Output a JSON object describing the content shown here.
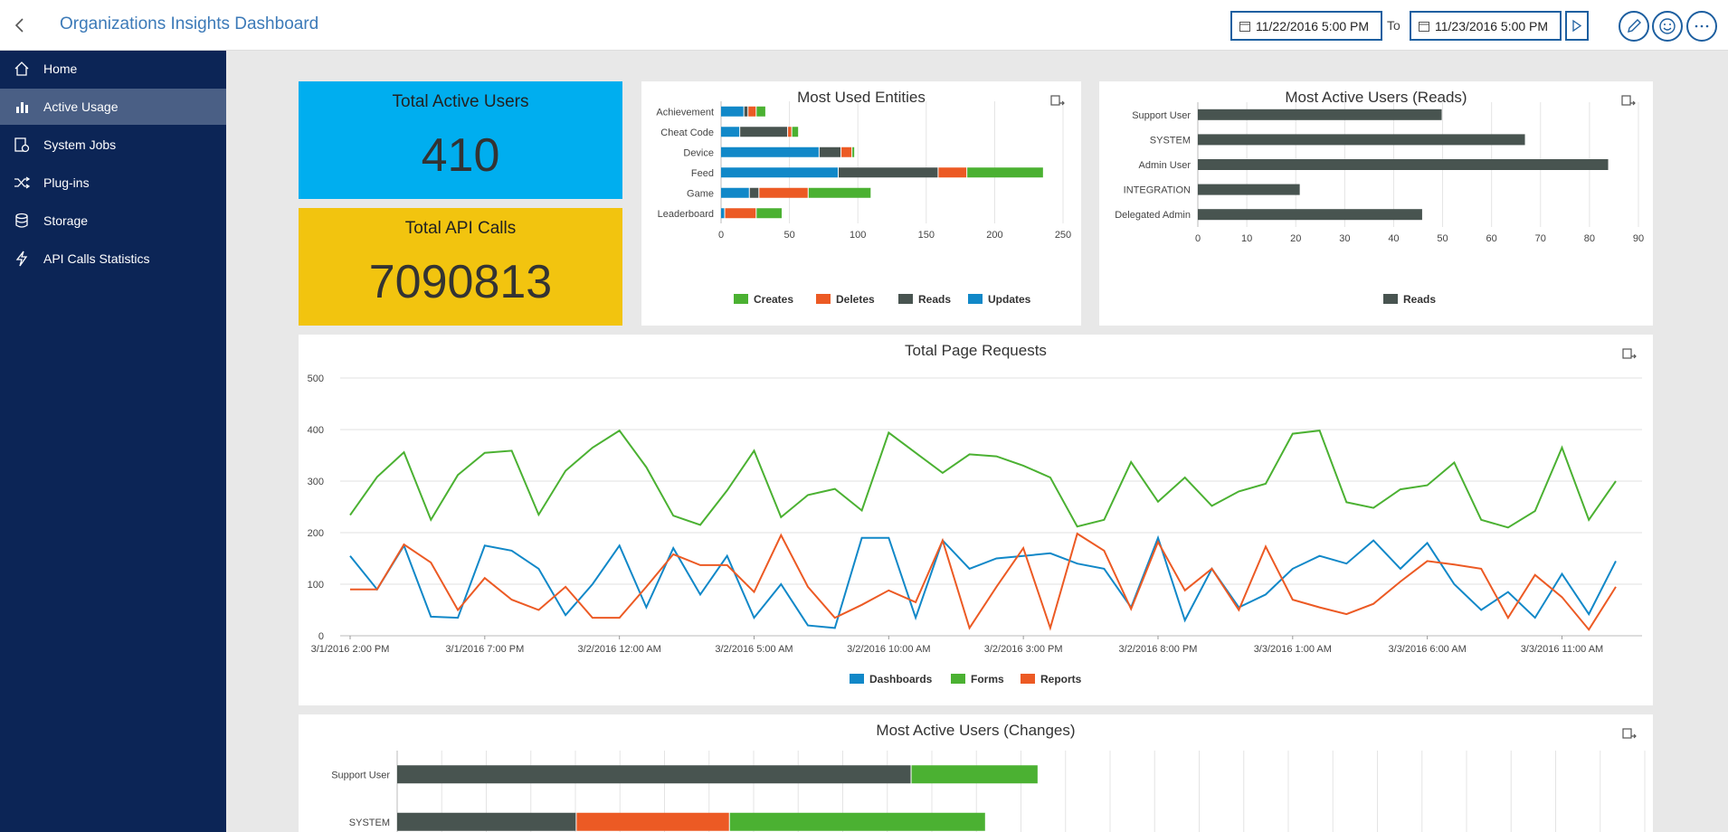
{
  "header": {
    "title": "Organizations Insights Dashboard",
    "date_from": "11/22/2016 5:00 PM",
    "to_label": "To",
    "date_to": "11/23/2016 5:00 PM"
  },
  "sidebar": {
    "items": [
      {
        "label": "Home",
        "icon": "home-icon"
      },
      {
        "label": "Active Usage",
        "icon": "bar-chart-icon"
      },
      {
        "label": "System Jobs",
        "icon": "jobs-icon"
      },
      {
        "label": "Plug-ins",
        "icon": "shuffle-icon"
      },
      {
        "label": "Storage",
        "icon": "database-icon"
      },
      {
        "label": "API Calls Statistics",
        "icon": "lightning-icon"
      }
    ],
    "active_index": 1
  },
  "tiles": {
    "active_users": {
      "title": "Total Active Users",
      "value": "410",
      "color": "#00aeef"
    },
    "api_calls": {
      "title": "Total API Calls",
      "value": "7090813",
      "color": "#f2c40f"
    }
  },
  "colors": {
    "creates": "#4bb132",
    "deletes": "#ec5a24",
    "reads": "#485450",
    "updates": "#1188c8",
    "dashboards": "#1188c8",
    "forms": "#4bb132",
    "reports": "#ec5a24"
  },
  "chart_data": [
    {
      "id": "entities",
      "type": "bar",
      "orientation": "horizontal",
      "stacked": true,
      "title": "Most Used Entities",
      "categories": [
        "Achievement",
        "Cheat Code",
        "Device",
        "Feed",
        "Game",
        "Leaderboard"
      ],
      "series": [
        {
          "name": "Updates",
          "values": [
            17,
            14,
            72,
            86,
            21,
            3
          ]
        },
        {
          "name": "Reads",
          "values": [
            3,
            35,
            16,
            73,
            7,
            0
          ]
        },
        {
          "name": "Deletes",
          "values": [
            6,
            3,
            8,
            21,
            36,
            23
          ]
        },
        {
          "name": "Creates",
          "values": [
            7,
            5,
            2,
            56,
            46,
            19
          ]
        }
      ],
      "legend": [
        "Creates",
        "Deletes",
        "Reads",
        "Updates"
      ],
      "xlim": [
        0,
        250
      ],
      "xticks": [
        0,
        50,
        100,
        150,
        200,
        250
      ]
    },
    {
      "id": "reads",
      "type": "bar",
      "orientation": "horizontal",
      "title": "Most Active Users (Reads)",
      "categories": [
        "Support User",
        "SYSTEM",
        "Admin User",
        "INTEGRATION",
        "Delegated Admin"
      ],
      "series": [
        {
          "name": "Reads",
          "values": [
            50,
            67,
            84,
            21,
            46
          ]
        }
      ],
      "legend": [
        "Reads"
      ],
      "xlim": [
        0,
        90
      ],
      "xticks": [
        0,
        10,
        20,
        30,
        40,
        50,
        60,
        70,
        80,
        90
      ]
    },
    {
      "id": "pages",
      "type": "line",
      "title": "Total Page Requests",
      "ylim": [
        0,
        500
      ],
      "yticks": [
        0,
        100,
        200,
        300,
        400,
        500
      ],
      "xtick_labels": [
        "3/1/2016 2:00 PM",
        "3/1/2016 7:00 PM",
        "3/2/2016 12:00 AM",
        "3/2/2016 5:00 AM",
        "3/2/2016 10:00 AM",
        "3/2/2016 3:00 PM",
        "3/2/2016 8:00 PM",
        "3/3/2016 1:00 AM",
        "3/3/2016 6:00 AM",
        "3/3/2016 11:00 AM"
      ],
      "series": [
        {
          "name": "Dashboards",
          "values": [
            155,
            90,
            175,
            37,
            35,
            175,
            165,
            130,
            40,
            100,
            175,
            55,
            170,
            80,
            155,
            35,
            100,
            20,
            15,
            190,
            190,
            35,
            185,
            130,
            150,
            155,
            160,
            140,
            130,
            55,
            190,
            30,
            130,
            55,
            80,
            130,
            155,
            140,
            185,
            130,
            180,
            100,
            50,
            85,
            35,
            120,
            42,
            145
          ]
        },
        {
          "name": "Forms",
          "values": [
            234,
            308,
            356,
            225,
            312,
            355,
            359,
            235,
            320,
            365,
            398,
            327,
            233,
            215,
            282,
            359,
            230,
            273,
            285,
            243,
            394,
            355,
            316,
            352,
            348,
            330,
            307,
            212,
            225,
            337,
            260,
            307,
            252,
            280,
            295,
            392,
            398,
            259,
            248,
            284,
            292,
            336,
            225,
            210,
            242,
            365,
            225,
            300
          ]
        },
        {
          "name": "Reports",
          "values": [
            90,
            90,
            177,
            142,
            50,
            112,
            70,
            50,
            95,
            35,
            35,
            95,
            158,
            137,
            137,
            85,
            195,
            95,
            35,
            60,
            88,
            65,
            185,
            15,
            95,
            170,
            15,
            198,
            165,
            52,
            182,
            88,
            130,
            50,
            173,
            70,
            55,
            42,
            62,
            105,
            145,
            138,
            130,
            35,
            118,
            75,
            12,
            95
          ]
        }
      ],
      "legend": [
        "Dashboards",
        "Forms",
        "Reports"
      ]
    },
    {
      "id": "changes",
      "type": "bar",
      "orientation": "horizontal",
      "stacked": true,
      "title": "Most Active Users (Changes)",
      "categories": [
        "Support User",
        "SYSTEM"
      ],
      "series": [
        {
          "name": "Reads",
          "values": [
            235,
            82
          ]
        },
        {
          "name": "Deletes",
          "values": [
            0,
            70
          ]
        },
        {
          "name": "Creates",
          "values": [
            58,
            117
          ]
        }
      ],
      "xlim": [
        0,
        570
      ]
    }
  ]
}
